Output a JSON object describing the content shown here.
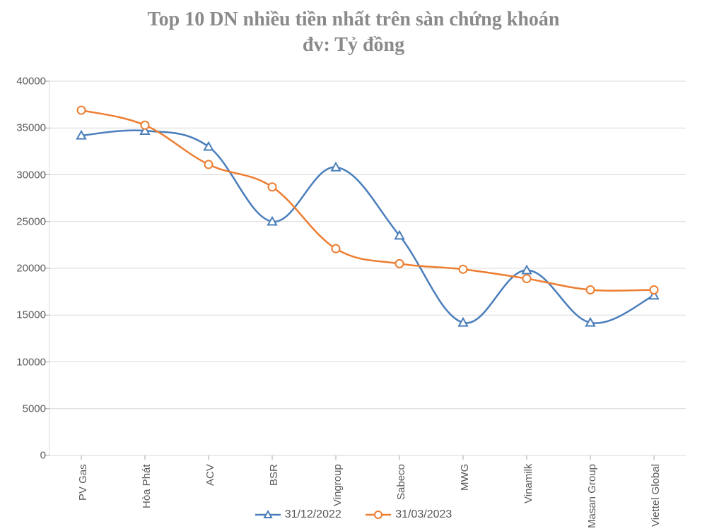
{
  "chart": {
    "type": "line",
    "title_line1": "Top 10 DN nhiều tiền nhất trên sàn chứng khoán",
    "title_line2": "đv: Tỷ đồng",
    "title_fontsize": 28,
    "title_color": "#8a8a8a",
    "background_color": "#ffffff",
    "grid_color": "#d9d9d9",
    "axis_color": "#d9d9d9",
    "tick_color": "#a6a6a6",
    "label_color": "#595959",
    "label_fontsize": 15,
    "ylim": [
      0,
      40000
    ],
    "ytick_step": 5000,
    "yticks": [
      0,
      5000,
      10000,
      15000,
      20000,
      25000,
      30000,
      35000,
      40000
    ],
    "categories": [
      "PV Gas",
      "Hòa Phát",
      "ACV",
      "BSR",
      "Vingroup",
      "Sabeco",
      "MWG",
      "Vinamilk",
      "Masan Group",
      "Viettel Global"
    ],
    "series": [
      {
        "name": "31/12/2022",
        "color": "#4a7ebb",
        "marker": "triangle",
        "marker_fill": "#ffffff",
        "line_width": 2.5,
        "smooth": true,
        "values": [
          34200,
          34700,
          33000,
          25000,
          30800,
          23500,
          14200,
          19800,
          14200,
          17100
        ]
      },
      {
        "name": "31/03/2023",
        "color": "#ed7d31",
        "marker": "circle",
        "marker_fill": "#ffffff",
        "line_width": 2.5,
        "smooth": true,
        "values": [
          36900,
          35300,
          31100,
          28700,
          22100,
          20500,
          19900,
          18900,
          17700,
          17700
        ]
      }
    ],
    "legend_position": "bottom",
    "x_label_rotation": -90
  }
}
